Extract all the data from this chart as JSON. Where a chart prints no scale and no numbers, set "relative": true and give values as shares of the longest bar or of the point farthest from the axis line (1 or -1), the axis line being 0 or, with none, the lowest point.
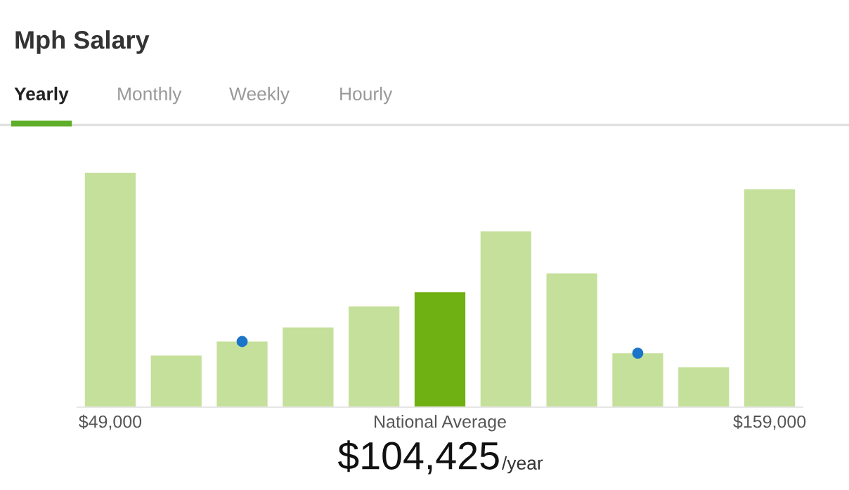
{
  "chart_data": {
    "type": "bar",
    "title": "Mph Salary",
    "relative": true,
    "categories": [
      "$49,000",
      null,
      null,
      null,
      null,
      "National Average",
      null,
      null,
      null,
      null,
      "$159,000"
    ],
    "colors": [
      "#c5e09a",
      "#c5e09a",
      "#c5e09a",
      "#c5e09a",
      "#c5e09a",
      "#6fb012",
      "#c5e09a",
      "#c5e09a",
      "#c5e09a",
      "#c5e09a",
      "#c5e09a"
    ],
    "values": [
      1,
      0.22,
      0.28,
      0.34,
      0.43,
      0.49,
      0.75,
      0.57,
      0.23,
      0.17,
      0.93
    ],
    "series": [
      {
        "type": "scatter",
        "color": "#1b75c9",
        "values": [
          null,
          null,
          0.28,
          null,
          null,
          null,
          null,
          null,
          0.23,
          null,
          null
        ]
      }
    ],
    "annotations": [
      "Yearly",
      "Monthly",
      "Weekly",
      "Hourly",
      "$104,425",
      "/year"
    ]
  }
}
